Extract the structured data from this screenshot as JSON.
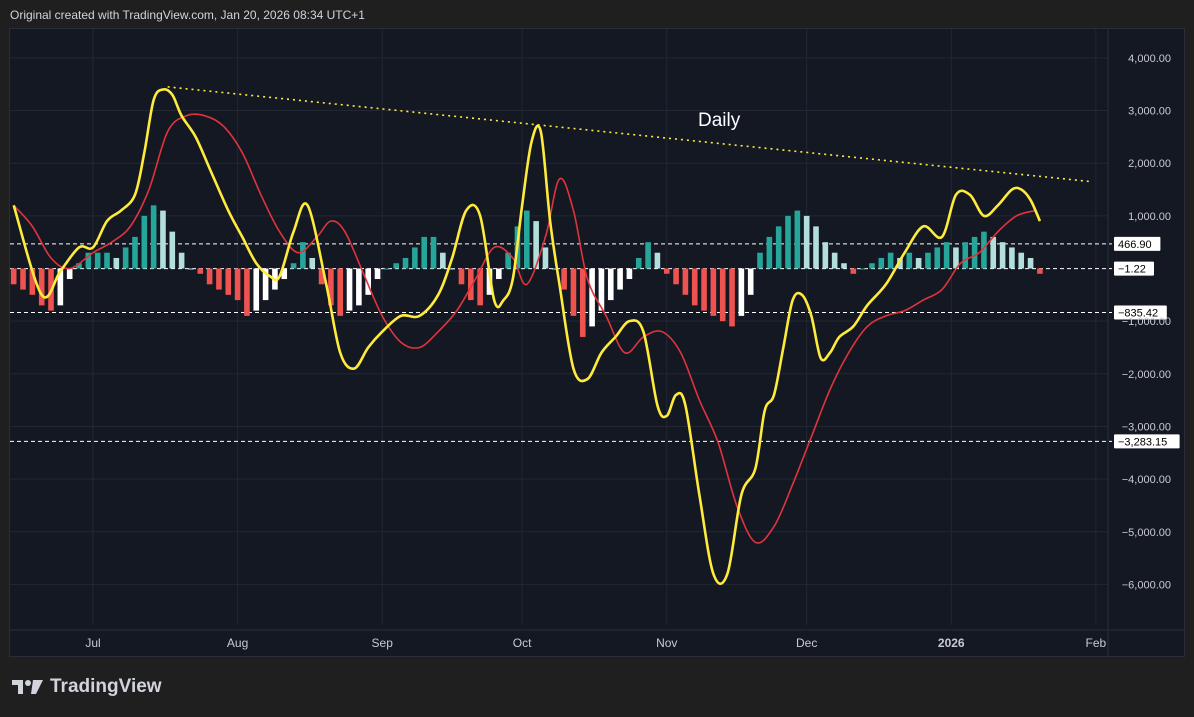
{
  "header": {
    "text": "Original created with TradingView.com, Jan 20, 2026 08:34 UTC+1"
  },
  "footer": {
    "brand": "TradingView"
  },
  "colors": {
    "background": "#141823",
    "grid": "#232733",
    "macd": "#ffeb3b",
    "signal": "#e0343d",
    "hist_up_strong": "#26a69a",
    "hist_up_weak": "#b2dfdb",
    "hist_down_strong": "#ef5350",
    "hist_down_weak": "#ffffff",
    "trendline": "#ffeb3b"
  },
  "chart_data": {
    "type": "line",
    "annotation": "Daily",
    "ylim": [
      -7000,
      4000
    ],
    "y_ticks": [
      "4,000.00",
      "3,000.00",
      "2,000.00",
      "1,000.00",
      "−1,000.00",
      "−2,000.00",
      "−3,000.00",
      "−4,000.00",
      "−5,000.00",
      "−6,000.00"
    ],
    "y_tick_values": [
      4000,
      3000,
      2000,
      1000,
      -1000,
      -2000,
      -3000,
      -4000,
      -5000,
      -6000
    ],
    "x_ticks": [
      "Jul",
      "Aug",
      "Sep",
      "Oct",
      "Nov",
      "Dec",
      "2026",
      "Feb"
    ],
    "x_tick_dates": [
      "2025-07-01",
      "2025-08-01",
      "2025-09-01",
      "2025-10-01",
      "2025-11-01",
      "2025-12-01",
      "2026-01-01",
      "2026-02-01"
    ],
    "x_tick_bold": [
      false,
      false,
      false,
      false,
      false,
      false,
      true,
      false
    ],
    "horizontal_levels": [
      {
        "value": 466.9,
        "label": "466.90"
      },
      {
        "value": -1.22,
        "label": "−1.22"
      },
      {
        "value": -835.42,
        "label": "−835.42"
      },
      {
        "value": -3283.15,
        "label": "−3,283.15"
      }
    ],
    "trendline": {
      "x": [
        "2025-07-17",
        "2026-01-31"
      ],
      "y": [
        3450,
        1650
      ]
    },
    "series": [
      {
        "role": "macd",
        "x": [
          "2025-06-14",
          "2025-06-20",
          "2025-06-24",
          "2025-06-28",
          "2025-07-01",
          "2025-07-04",
          "2025-07-07",
          "2025-07-10",
          "2025-07-12",
          "2025-07-14",
          "2025-07-16",
          "2025-07-18",
          "2025-07-20",
          "2025-07-23",
          "2025-07-26",
          "2025-07-30",
          "2025-08-02",
          "2025-08-05",
          "2025-08-08",
          "2025-08-10",
          "2025-08-13",
          "2025-08-16",
          "2025-08-20",
          "2025-08-23",
          "2025-08-26",
          "2025-08-29",
          "2025-09-01",
          "2025-09-05",
          "2025-09-09",
          "2025-09-13",
          "2025-09-16",
          "2025-09-19",
          "2025-09-22",
          "2025-09-25",
          "2025-09-27",
          "2025-09-29",
          "2025-10-01",
          "2025-10-03",
          "2025-10-05",
          "2025-10-07",
          "2025-10-09",
          "2025-10-12",
          "2025-10-15",
          "2025-10-18",
          "2025-10-21",
          "2025-10-24",
          "2025-10-27",
          "2025-10-30",
          "2025-11-01",
          "2025-11-03",
          "2025-11-05",
          "2025-11-08",
          "2025-11-11",
          "2025-11-14",
          "2025-11-17",
          "2025-11-20",
          "2025-11-22",
          "2025-11-24",
          "2025-11-26",
          "2025-11-28",
          "2025-11-30",
          "2025-12-02",
          "2025-12-04",
          "2025-12-06",
          "2025-12-08",
          "2025-12-11",
          "2025-12-14",
          "2025-12-18",
          "2025-12-22",
          "2025-12-26",
          "2025-12-30",
          "2026-01-02",
          "2026-01-05",
          "2026-01-08",
          "2026-01-11",
          "2026-01-14",
          "2026-01-16",
          "2026-01-18",
          "2026-01-20"
        ],
        "y": [
          1200,
          -500,
          -50,
          400,
          400,
          900,
          1100,
          1400,
          2200,
          3200,
          3400,
          3300,
          2900,
          2500,
          1900,
          1100,
          600,
          100,
          -150,
          -150,
          700,
          1200,
          -300,
          -1600,
          -1900,
          -1500,
          -1200,
          -900,
          -900,
          -500,
          200,
          1100,
          1000,
          -600,
          -600,
          -200,
          1200,
          2400,
          2600,
          900,
          -300,
          -1900,
          -2100,
          -1600,
          -1300,
          -1000,
          -1200,
          -2600,
          -2800,
          -2400,
          -2600,
          -4300,
          -5800,
          -5800,
          -4300,
          -3800,
          -2700,
          -2400,
          -1500,
          -600,
          -500,
          -900,
          -1700,
          -1600,
          -1300,
          -1100,
          -700,
          -300,
          300,
          800,
          600,
          1400,
          1400,
          1000,
          1200,
          1500,
          1500,
          1300,
          900
        ]
      },
      {
        "role": "signal",
        "x": [
          "2025-06-14",
          "2025-06-18",
          "2025-06-22",
          "2025-06-26",
          "2025-07-01",
          "2025-07-05",
          "2025-07-09",
          "2025-07-13",
          "2025-07-17",
          "2025-07-21",
          "2025-07-25",
          "2025-07-29",
          "2025-08-02",
          "2025-08-06",
          "2025-08-10",
          "2025-08-14",
          "2025-08-18",
          "2025-08-21",
          "2025-08-24",
          "2025-08-28",
          "2025-09-01",
          "2025-09-05",
          "2025-09-09",
          "2025-09-13",
          "2025-09-17",
          "2025-09-21",
          "2025-09-25",
          "2025-09-29",
          "2025-10-02",
          "2025-10-06",
          "2025-10-09",
          "2025-10-12",
          "2025-10-15",
          "2025-10-19",
          "2025-10-23",
          "2025-10-27",
          "2025-10-31",
          "2025-11-04",
          "2025-11-08",
          "2025-11-12",
          "2025-11-16",
          "2025-11-20",
          "2025-11-24",
          "2025-11-28",
          "2025-12-02",
          "2025-12-06",
          "2025-12-10",
          "2025-12-14",
          "2025-12-18",
          "2025-12-22",
          "2025-12-26",
          "2025-12-30",
          "2026-01-03",
          "2026-01-07",
          "2026-01-11",
          "2026-01-15",
          "2026-01-19"
        ],
        "y": [
          1200,
          800,
          200,
          0,
          300,
          500,
          800,
          1500,
          2600,
          2900,
          2900,
          2700,
          2200,
          1400,
          700,
          300,
          600,
          900,
          700,
          -100,
          -900,
          -1400,
          -1500,
          -1200,
          -800,
          -200,
          400,
          200,
          -300,
          600,
          1700,
          1100,
          -200,
          -900,
          -1600,
          -1300,
          -1200,
          -1600,
          -2500,
          -3300,
          -4500,
          -5200,
          -4900,
          -4100,
          -3200,
          -2300,
          -1600,
          -1100,
          -900,
          -800,
          -600,
          -400,
          100,
          300,
          700,
          1000,
          1100
        ]
      }
    ],
    "histogram": {
      "x": [
        "2025-06-14",
        "2025-06-16",
        "2025-06-18",
        "2025-06-20",
        "2025-06-22",
        "2025-06-24",
        "2025-06-26",
        "2025-06-28",
        "2025-06-30",
        "2025-07-02",
        "2025-07-04",
        "2025-07-06",
        "2025-07-08",
        "2025-07-10",
        "2025-07-12",
        "2025-07-14",
        "2025-07-16",
        "2025-07-18",
        "2025-07-20",
        "2025-07-22",
        "2025-07-24",
        "2025-07-26",
        "2025-07-28",
        "2025-07-30",
        "2025-08-01",
        "2025-08-03",
        "2025-08-05",
        "2025-08-07",
        "2025-08-09",
        "2025-08-11",
        "2025-08-13",
        "2025-08-15",
        "2025-08-17",
        "2025-08-19",
        "2025-08-21",
        "2025-08-23",
        "2025-08-25",
        "2025-08-27",
        "2025-08-29",
        "2025-08-31",
        "2025-09-02",
        "2025-09-04",
        "2025-09-06",
        "2025-09-08",
        "2025-09-10",
        "2025-09-12",
        "2025-09-14",
        "2025-09-16",
        "2025-09-18",
        "2025-09-20",
        "2025-09-22",
        "2025-09-24",
        "2025-09-26",
        "2025-09-28",
        "2025-09-30",
        "2025-10-02",
        "2025-10-04",
        "2025-10-06",
        "2025-10-08",
        "2025-10-10",
        "2025-10-12",
        "2025-10-14",
        "2025-10-16",
        "2025-10-18",
        "2025-10-20",
        "2025-10-22",
        "2025-10-24",
        "2025-10-26",
        "2025-10-28",
        "2025-10-30",
        "2025-11-01",
        "2025-11-03",
        "2025-11-05",
        "2025-11-07",
        "2025-11-09",
        "2025-11-11",
        "2025-11-13",
        "2025-11-15",
        "2025-11-17",
        "2025-11-19",
        "2025-11-21",
        "2025-11-23",
        "2025-11-25",
        "2025-11-27",
        "2025-11-29",
        "2025-12-01",
        "2025-12-03",
        "2025-12-05",
        "2025-12-07",
        "2025-12-09",
        "2025-12-11",
        "2025-12-13",
        "2025-12-15",
        "2025-12-17",
        "2025-12-19",
        "2025-12-21",
        "2025-12-23",
        "2025-12-25",
        "2025-12-27",
        "2025-12-29",
        "2025-12-31",
        "2026-01-02",
        "2026-01-04",
        "2026-01-06",
        "2026-01-08",
        "2026-01-10",
        "2026-01-12",
        "2026-01-14",
        "2026-01-16",
        "2026-01-18",
        "2026-01-20"
      ],
      "y": [
        -300,
        -400,
        -500,
        -700,
        -800,
        -700,
        -200,
        100,
        300,
        300,
        300,
        200,
        400,
        600,
        1000,
        1200,
        1100,
        700,
        300,
        0,
        -100,
        -300,
        -400,
        -500,
        -600,
        -900,
        -800,
        -600,
        -400,
        -200,
        100,
        500,
        200,
        -300,
        -700,
        -900,
        -800,
        -700,
        -500,
        -200,
        0,
        100,
        200,
        400,
        600,
        600,
        300,
        0,
        -300,
        -600,
        -700,
        -500,
        -200,
        300,
        800,
        1100,
        900,
        400,
        0,
        -400,
        -900,
        -1300,
        -1100,
        -800,
        -600,
        -400,
        -200,
        200,
        500,
        300,
        -100,
        -300,
        -500,
        -700,
        -800,
        -900,
        -1000,
        -1100,
        -900,
        -500,
        300,
        600,
        800,
        1000,
        1100,
        1000,
        800,
        500,
        300,
        100,
        -100,
        0,
        100,
        200,
        300,
        200,
        300,
        200,
        300,
        400,
        500,
        400,
        500,
        600,
        700,
        600,
        500,
        400,
        300,
        200,
        -100
      ]
    }
  }
}
